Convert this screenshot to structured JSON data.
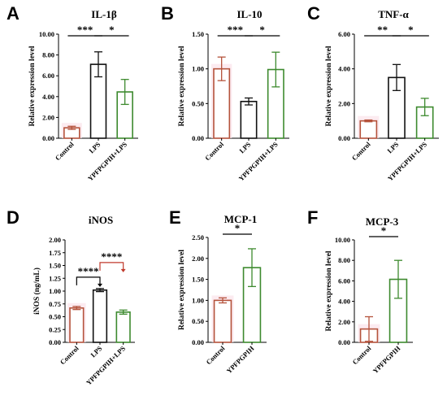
{
  "colors": {
    "Control": "#b5533c",
    "LPS": "#111111",
    "YPFPGPIH+LPS": "#3d8a2e",
    "YPFPGPIH": "#3d8a2e",
    "bracket_red": "#c0392b"
  },
  "chart_data": [
    {
      "panel": "A",
      "type": "bar",
      "title": "IL-1β",
      "ylabel": "Relative expression level",
      "ylim": [
        0,
        10
      ],
      "yticks": [
        "0.00",
        "2.00",
        "4.00",
        "6.00",
        "8.00",
        "10.00"
      ],
      "categories": [
        "Control",
        "LPS",
        "YPFPGPIH+LPS"
      ],
      "values": [
        1.0,
        7.1,
        4.45
      ],
      "errors": [
        0.15,
        1.2,
        1.2
      ],
      "significance": [
        {
          "from": 0,
          "to": 1,
          "label": "***"
        },
        {
          "from": 1,
          "to": 2,
          "label": "*"
        }
      ]
    },
    {
      "panel": "B",
      "type": "bar",
      "title": "IL-10",
      "ylabel": "Relative expression level",
      "ylim": [
        0,
        1.5
      ],
      "yticks": [
        "0.00",
        "0.50",
        "1.00",
        "1.50"
      ],
      "categories": [
        "Control",
        "LPS",
        "YPFPGPIH+LPS"
      ],
      "values": [
        1.0,
        0.53,
        0.99
      ],
      "errors": [
        0.17,
        0.05,
        0.25
      ],
      "significance": [
        {
          "from": 0,
          "to": 1,
          "label": "***"
        },
        {
          "from": 1,
          "to": 2,
          "label": "*"
        }
      ]
    },
    {
      "panel": "C",
      "type": "bar",
      "title": "TNF-α",
      "ylabel": "Relative expression level",
      "ylim": [
        0,
        6
      ],
      "yticks": [
        "0.00",
        "2.00",
        "4.00",
        "6.00"
      ],
      "categories": [
        "Control",
        "LPS",
        "YPFPGPIH+LPS"
      ],
      "values": [
        1.0,
        3.5,
        1.8
      ],
      "errors": [
        0.05,
        0.75,
        0.5
      ],
      "significance": [
        {
          "from": 0,
          "to": 1,
          "label": "**"
        },
        {
          "from": 1,
          "to": 2,
          "label": "*"
        }
      ]
    },
    {
      "panel": "D",
      "type": "bar",
      "title": "iNOS",
      "ylabel": "iNOS (ng/mL)",
      "ylim": [
        0,
        2
      ],
      "yticks": [
        "0.00",
        "0.25",
        "0.50",
        "0.75",
        "1.00",
        "1.25",
        "1.50",
        "1.75",
        "2.00"
      ],
      "categories": [
        "Control",
        "LPS",
        "YPFPGPIH+LPS"
      ],
      "values": [
        0.67,
        1.02,
        0.59
      ],
      "errors": [
        0.03,
        0.03,
        0.04
      ],
      "significance": [
        {
          "from": 0,
          "to": 1,
          "label": "****",
          "style": "down"
        },
        {
          "from": 1,
          "to": 2,
          "label": "****",
          "style": "down",
          "red": true
        }
      ]
    },
    {
      "panel": "E",
      "type": "bar",
      "title": "MCP-1",
      "ylabel": "Relative expression level",
      "ylim": [
        0,
        2.5
      ],
      "yticks": [
        "0.00",
        "0.50",
        "1.00",
        "1.50",
        "2.00",
        "2.50"
      ],
      "categories": [
        "Control",
        "YPFPGPIH"
      ],
      "values": [
        1.0,
        1.78
      ],
      "errors": [
        0.06,
        0.45
      ],
      "significance": [
        {
          "from": 0,
          "to": 1,
          "label": "*"
        }
      ]
    },
    {
      "panel": "F",
      "type": "bar",
      "title": "MCP-3",
      "ylabel": "Relative expression level",
      "ylim": [
        0,
        10
      ],
      "yticks": [
        "0.00",
        "2.00",
        "4.00",
        "6.00",
        "8.00",
        "10.00"
      ],
      "categories": [
        "Control",
        "YPFPGPIH"
      ],
      "values": [
        1.3,
        6.15
      ],
      "errors": [
        1.2,
        1.85
      ],
      "significance": [
        {
          "from": 0,
          "to": 1,
          "label": "*"
        }
      ]
    }
  ]
}
